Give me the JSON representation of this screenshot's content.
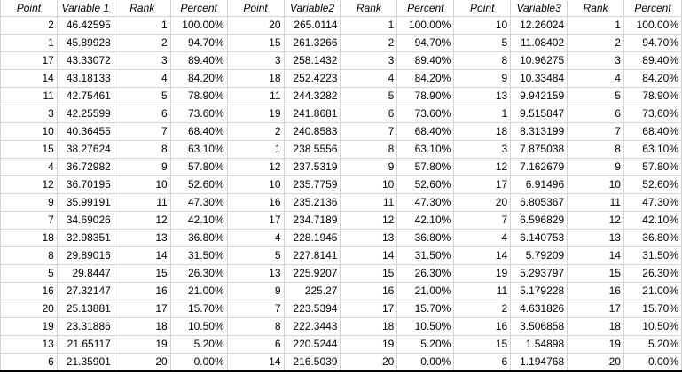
{
  "headers": [
    "Point",
    "Variable 1",
    "Rank",
    "Percent",
    "Point",
    "Variable2",
    "Rank",
    "Percent",
    "Point",
    "Variable3",
    "Rank",
    "Percent"
  ],
  "rows": [
    [
      "2",
      "46.42595",
      "1",
      "100.00%",
      "20",
      "265.0114",
      "1",
      "100.00%",
      "10",
      "12.26024",
      "1",
      "100.00%"
    ],
    [
      "1",
      "45.89928",
      "2",
      "94.70%",
      "15",
      "261.3266",
      "2",
      "94.70%",
      "5",
      "11.08402",
      "2",
      "94.70%"
    ],
    [
      "17",
      "43.33072",
      "3",
      "89.40%",
      "3",
      "258.1432",
      "3",
      "89.40%",
      "8",
      "10.96275",
      "3",
      "89.40%"
    ],
    [
      "14",
      "43.18133",
      "4",
      "84.20%",
      "18",
      "252.4223",
      "4",
      "84.20%",
      "9",
      "10.33484",
      "4",
      "84.20%"
    ],
    [
      "11",
      "42.75461",
      "5",
      "78.90%",
      "11",
      "244.3282",
      "5",
      "78.90%",
      "13",
      "9.942159",
      "5",
      "78.90%"
    ],
    [
      "3",
      "42.25599",
      "6",
      "73.60%",
      "19",
      "241.8681",
      "6",
      "73.60%",
      "1",
      "9.515847",
      "6",
      "73.60%"
    ],
    [
      "10",
      "40.36455",
      "7",
      "68.40%",
      "2",
      "240.8583",
      "7",
      "68.40%",
      "18",
      "8.313199",
      "7",
      "68.40%"
    ],
    [
      "15",
      "38.27624",
      "8",
      "63.10%",
      "1",
      "238.5556",
      "8",
      "63.10%",
      "3",
      "7.875038",
      "8",
      "63.10%"
    ],
    [
      "4",
      "36.72982",
      "9",
      "57.80%",
      "12",
      "237.5319",
      "9",
      "57.80%",
      "12",
      "7.162679",
      "9",
      "57.80%"
    ],
    [
      "12",
      "36.70195",
      "10",
      "52.60%",
      "10",
      "235.7759",
      "10",
      "52.60%",
      "17",
      "6.91496",
      "10",
      "52.60%"
    ],
    [
      "9",
      "35.99191",
      "11",
      "47.30%",
      "16",
      "235.2136",
      "11",
      "47.30%",
      "20",
      "6.805367",
      "11",
      "47.30%"
    ],
    [
      "7",
      "34.69026",
      "12",
      "42.10%",
      "17",
      "234.7189",
      "12",
      "42.10%",
      "7",
      "6.596829",
      "12",
      "42.10%"
    ],
    [
      "18",
      "32.98351",
      "13",
      "36.80%",
      "4",
      "228.1945",
      "13",
      "36.80%",
      "4",
      "6.140753",
      "13",
      "36.80%"
    ],
    [
      "8",
      "29.89016",
      "14",
      "31.50%",
      "5",
      "227.8141",
      "14",
      "31.50%",
      "14",
      "5.79209",
      "14",
      "31.50%"
    ],
    [
      "5",
      "29.8447",
      "15",
      "26.30%",
      "13",
      "225.9207",
      "15",
      "26.30%",
      "19",
      "5.293797",
      "15",
      "26.30%"
    ],
    [
      "16",
      "27.32147",
      "16",
      "21.00%",
      "9",
      "225.27",
      "16",
      "21.00%",
      "11",
      "5.179228",
      "16",
      "21.00%"
    ],
    [
      "20",
      "25.13881",
      "17",
      "15.70%",
      "7",
      "223.5394",
      "17",
      "15.70%",
      "2",
      "4.631826",
      "17",
      "15.70%"
    ],
    [
      "19",
      "23.31886",
      "18",
      "10.50%",
      "8",
      "222.3443",
      "18",
      "10.50%",
      "16",
      "3.506858",
      "18",
      "10.50%"
    ],
    [
      "13",
      "21.65117",
      "19",
      "5.20%",
      "6",
      "220.5244",
      "19",
      "5.20%",
      "15",
      "1.54898",
      "19",
      "5.20%"
    ],
    [
      "6",
      "21.35901",
      "20",
      "0.00%",
      "14",
      "216.5039",
      "20",
      "0.00%",
      "6",
      "1.194768",
      "20",
      "0.00%"
    ]
  ]
}
